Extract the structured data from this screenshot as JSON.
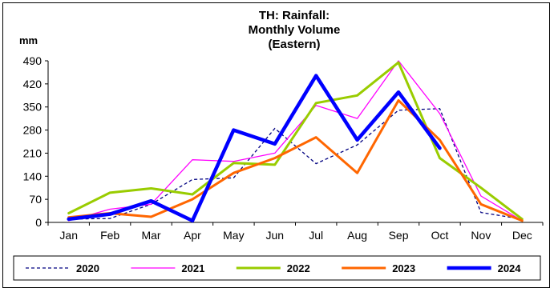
{
  "chart_data": {
    "type": "line",
    "title_lines": [
      "TH: Rainfall:",
      "Monthly Volume",
      "(Eastern)"
    ],
    "ylabel": "mm",
    "xlabel": "",
    "categories": [
      "Jan",
      "Feb",
      "Mar",
      "Apr",
      "May",
      "Jun",
      "Jul",
      "Aug",
      "Sep",
      "Oct",
      "Nov",
      "Dec"
    ],
    "ylim": [
      0,
      490
    ],
    "yticks": [
      0,
      70,
      140,
      210,
      280,
      350,
      420,
      490
    ],
    "grid": false,
    "legend_position": "bottom",
    "series": [
      {
        "name": "2020",
        "color": "#000080",
        "style": "dashed",
        "values": [
          10,
          12,
          55,
          130,
          135,
          285,
          178,
          235,
          340,
          345,
          30,
          10
        ]
      },
      {
        "name": "2021",
        "color": "#ff00ff",
        "style": "solid",
        "values": [
          5,
          40,
          55,
          190,
          185,
          210,
          355,
          315,
          490,
          330,
          80,
          5
        ]
      },
      {
        "name": "2022",
        "color": "#99cc00",
        "style": "solid",
        "values": [
          28,
          90,
          103,
          85,
          180,
          175,
          362,
          385,
          485,
          195,
          105,
          10
        ]
      },
      {
        "name": "2023",
        "color": "#ff6600",
        "style": "solid",
        "values": [
          15,
          28,
          17,
          70,
          150,
          195,
          258,
          150,
          370,
          250,
          55,
          5
        ]
      },
      {
        "name": "2024",
        "color": "#0000ff",
        "style": "solid",
        "values": [
          10,
          25,
          65,
          5,
          280,
          238,
          445,
          250,
          395,
          225,
          null,
          null
        ]
      }
    ]
  }
}
